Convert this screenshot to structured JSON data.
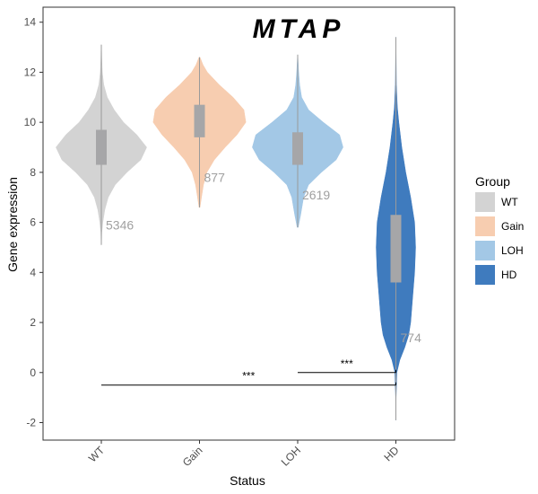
{
  "chart_data": {
    "type": "violin",
    "title": "MTAP",
    "xlabel": "Status",
    "ylabel": "Gene expression",
    "ylim": [
      -2.7,
      14.6
    ],
    "yticks": [
      -2,
      0,
      2,
      4,
      6,
      8,
      10,
      12,
      14
    ],
    "categories": [
      "WT",
      "Gain",
      "LOH",
      "HD"
    ],
    "colors": [
      "#D3D3D3",
      "#F7CDB0",
      "#A3C8E6",
      "#3F7BBE"
    ],
    "box_color": "#A6A6A8",
    "n_labels": [
      "5346",
      "877",
      "2619",
      "774"
    ],
    "n_label_y": [
      5.9,
      7.8,
      7.1,
      1.4
    ],
    "violins": [
      {
        "name": "WT",
        "min": 5.1,
        "max": 13.1,
        "q1": 8.3,
        "q3": 9.7,
        "median": 9.0,
        "profile": [
          [
            5.1,
            0.002
          ],
          [
            5.6,
            0.01
          ],
          [
            6.0,
            0.03
          ],
          [
            6.5,
            0.07
          ],
          [
            7.0,
            0.14
          ],
          [
            7.5,
            0.28
          ],
          [
            8.0,
            0.52
          ],
          [
            8.5,
            0.8
          ],
          [
            9.0,
            0.92
          ],
          [
            9.5,
            0.72
          ],
          [
            10.0,
            0.45
          ],
          [
            10.5,
            0.26
          ],
          [
            11.0,
            0.12
          ],
          [
            11.5,
            0.05
          ],
          [
            12.0,
            0.02
          ],
          [
            12.5,
            0.01
          ],
          [
            13.1,
            0.002
          ]
        ]
      },
      {
        "name": "Gain",
        "min": 6.6,
        "max": 12.6,
        "q1": 9.4,
        "q3": 10.7,
        "median": 10.0,
        "profile": [
          [
            6.6,
            0.01
          ],
          [
            7.0,
            0.04
          ],
          [
            7.5,
            0.08
          ],
          [
            8.0,
            0.15
          ],
          [
            8.5,
            0.3
          ],
          [
            9.0,
            0.52
          ],
          [
            9.5,
            0.76
          ],
          [
            10.0,
            0.94
          ],
          [
            10.5,
            0.9
          ],
          [
            11.0,
            0.68
          ],
          [
            11.5,
            0.4
          ],
          [
            12.0,
            0.16
          ],
          [
            12.3,
            0.07
          ],
          [
            12.6,
            0.01
          ]
        ]
      },
      {
        "name": "LOH",
        "min": 5.8,
        "max": 12.7,
        "q1": 8.3,
        "q3": 9.6,
        "median": 9.1,
        "profile": [
          [
            5.8,
            0.01
          ],
          [
            6.3,
            0.06
          ],
          [
            7.0,
            0.12
          ],
          [
            7.5,
            0.22
          ],
          [
            8.0,
            0.48
          ],
          [
            8.5,
            0.78
          ],
          [
            9.0,
            0.92
          ],
          [
            9.5,
            0.85
          ],
          [
            10.0,
            0.52
          ],
          [
            10.5,
            0.22
          ],
          [
            11.0,
            0.08
          ],
          [
            11.5,
            0.04
          ],
          [
            12.0,
            0.02
          ],
          [
            12.7,
            0.002
          ]
        ]
      },
      {
        "name": "HD",
        "min": -1.9,
        "max": 13.4,
        "q1": 3.6,
        "q3": 6.3,
        "median": 4.9,
        "profile": [
          [
            -1.9,
            0.002
          ],
          [
            -1.0,
            0.005
          ],
          [
            0.0,
            0.02
          ],
          [
            0.5,
            0.08
          ],
          [
            1.0,
            0.18
          ],
          [
            1.5,
            0.26
          ],
          [
            2.0,
            0.3
          ],
          [
            3.0,
            0.34
          ],
          [
            4.0,
            0.38
          ],
          [
            5.0,
            0.4
          ],
          [
            6.0,
            0.38
          ],
          [
            7.0,
            0.3
          ],
          [
            8.0,
            0.2
          ],
          [
            9.0,
            0.12
          ],
          [
            10.0,
            0.06
          ],
          [
            10.6,
            0.03
          ],
          [
            11.5,
            0.01
          ],
          [
            13.4,
            0.002
          ]
        ]
      }
    ],
    "significance": [
      {
        "from": "LOH",
        "to": "HD",
        "y": 0.0,
        "label": "***"
      },
      {
        "from": "WT",
        "to": "HD",
        "y": -0.5,
        "label": "***"
      }
    ],
    "legend": {
      "title": "Group",
      "items": [
        "WT",
        "Gain",
        "LOH",
        "HD"
      ],
      "placement": "right"
    },
    "grid": false
  }
}
